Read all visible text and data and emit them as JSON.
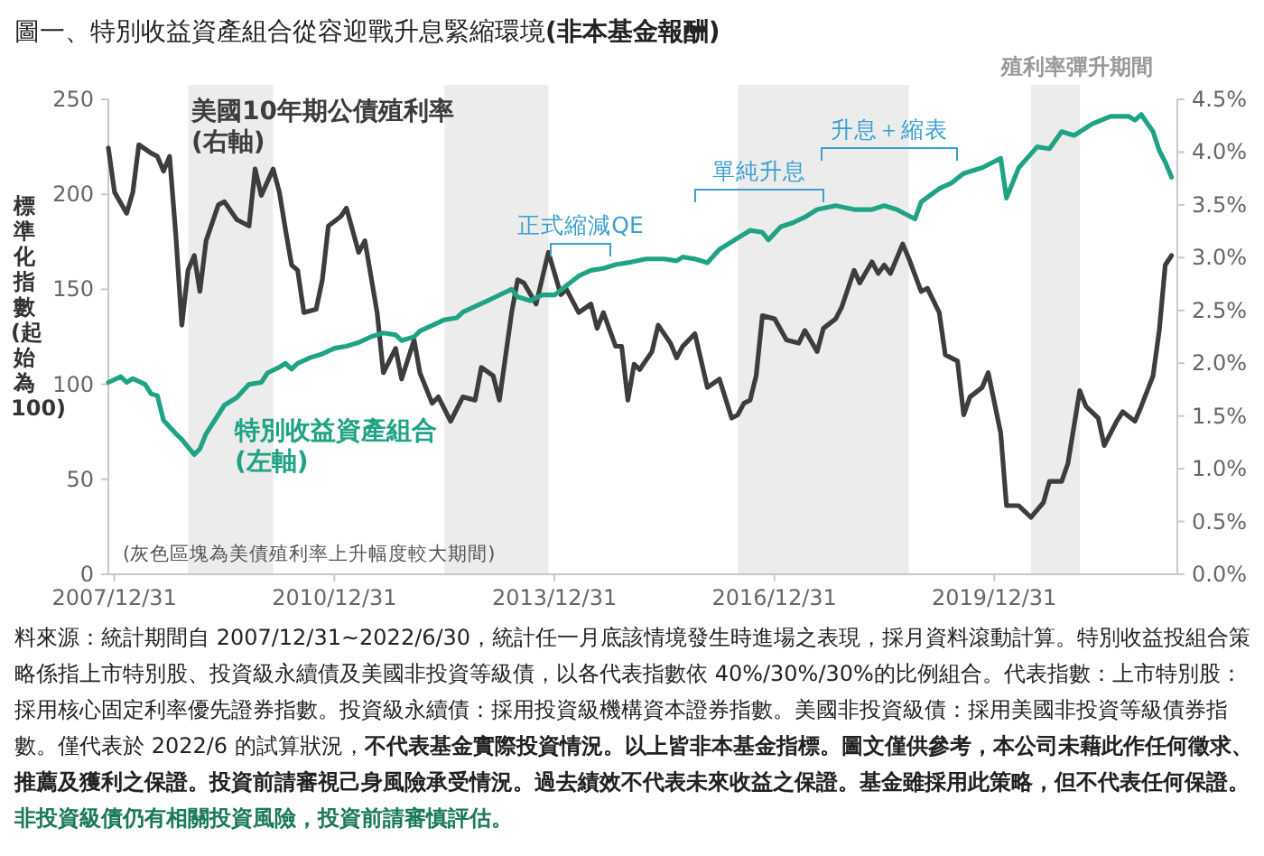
{
  "chart_data": {
    "type": "line",
    "title": "圖一、特別收益資產組合從容迎戰升息緊縮環境**(非本基金報酬)**",
    "ylabel": "標準化指數(起始為100)",
    "xlim": [
      "2007-12-01",
      "2022-06-30"
    ],
    "xticks": [
      {
        "value": "2007-12-31",
        "label": "2007/12/31"
      },
      {
        "value": "2010-12-31",
        "label": "2010/12/31"
      },
      {
        "value": "2013-12-31",
        "label": "2013/12/31"
      },
      {
        "value": "2016-12-31",
        "label": "2016/12/31"
      },
      {
        "value": "2019-12-31",
        "label": "2019/12/31"
      }
    ],
    "ylim": [
      0,
      250
    ],
    "yticks": [
      0,
      50,
      100,
      150,
      200,
      250
    ],
    "y2lim": [
      0,
      4.5
    ],
    "y2ticks": [
      {
        "value": 0,
        "label": "0.0%"
      },
      {
        "value": 0.5,
        "label": "0.5%"
      },
      {
        "value": 1,
        "label": "1.0%"
      },
      {
        "value": 1.5,
        "label": "1.5%"
      },
      {
        "value": 2,
        "label": "2.0%"
      },
      {
        "value": 2.5,
        "label": "2.5%"
      },
      {
        "value": 3,
        "label": "3.0%"
      },
      {
        "value": 3.5,
        "label": "3.5%"
      },
      {
        "value": 4,
        "label": "4.0%"
      },
      {
        "value": 4.5,
        "label": "4.5%"
      }
    ],
    "grid": false,
    "legend": false,
    "marker": "none",
    "line_style": "solid",
    "series": [
      {
        "name": "美國10年期公債殖利率(右軸)",
        "color": "#3d3d3d",
        "axis": "y2",
        "x": [
          "2007-12",
          "2008-01",
          "2008-03",
          "2008-04",
          "2008-05",
          "2008-07",
          "2008-08",
          "2008-09",
          "2008-10",
          "2008-11",
          "2008-12",
          "2009-01",
          "2009-02",
          "2009-03",
          "2009-04",
          "2009-06",
          "2009-07",
          "2009-09",
          "2009-11",
          "2009-12",
          "2010-01",
          "2010-03",
          "2010-04",
          "2010-05",
          "2010-06",
          "2010-07",
          "2010-08",
          "2010-10",
          "2010-11",
          "2010-12",
          "2011-02",
          "2011-03",
          "2011-05",
          "2011-06",
          "2011-08",
          "2011-09",
          "2011-11",
          "2011-12",
          "2012-02",
          "2012-03",
          "2012-05",
          "2012-06",
          "2012-08",
          "2012-10",
          "2012-12",
          "2013-01",
          "2013-03",
          "2013-04",
          "2013-06",
          "2013-07",
          "2013-08",
          "2013-10",
          "2013-12",
          "2014-02",
          "2014-03",
          "2014-05",
          "2014-07",
          "2014-08",
          "2014-09",
          "2014-11",
          "2014-12",
          "2015-01",
          "2015-02",
          "2015-03",
          "2015-05",
          "2015-06",
          "2015-08",
          "2015-09",
          "2015-10",
          "2015-12",
          "2016-02",
          "2016-04",
          "2016-06",
          "2016-07",
          "2016-08",
          "2016-09",
          "2016-10",
          "2016-11",
          "2017-01",
          "2017-03",
          "2017-05",
          "2017-06",
          "2017-08",
          "2017-09",
          "2017-11",
          "2017-12",
          "2018-02",
          "2018-03",
          "2018-05",
          "2018-06",
          "2018-07",
          "2018-08",
          "2018-10",
          "2018-11",
          "2019-01",
          "2019-02",
          "2019-04",
          "2019-05",
          "2019-07",
          "2019-08",
          "2019-09",
          "2019-11",
          "2019-12",
          "2020-02",
          "2020-03",
          "2020-05",
          "2020-07",
          "2020-09",
          "2020-10",
          "2020-12",
          "2021-01",
          "2021-03",
          "2021-04",
          "2021-06",
          "2021-07",
          "2021-09",
          "2021-10",
          "2021-12",
          "2022-01",
          "2022-03",
          "2022-04",
          "2022-05",
          "2022-06"
        ],
        "values": [
          4.04,
          3.62,
          3.42,
          3.62,
          4.07,
          3.99,
          3.96,
          3.82,
          3.96,
          3.22,
          2.36,
          2.88,
          3.02,
          2.68,
          3.16,
          3.5,
          3.53,
          3.36,
          3.3,
          3.84,
          3.59,
          3.84,
          3.62,
          3.27,
          2.93,
          2.88,
          2.48,
          2.51,
          2.79,
          3.3,
          3.39,
          3.47,
          3.05,
          3.16,
          2.48,
          1.91,
          2.14,
          1.85,
          2.22,
          1.91,
          1.62,
          1.68,
          1.45,
          1.68,
          1.65,
          1.96,
          1.88,
          1.65,
          2.48,
          2.79,
          2.76,
          2.56,
          3.05,
          2.65,
          2.7,
          2.48,
          2.56,
          2.33,
          2.48,
          2.16,
          2.16,
          1.65,
          1.99,
          1.94,
          2.11,
          2.36,
          2.19,
          2.05,
          2.16,
          2.28,
          1.77,
          1.85,
          1.48,
          1.51,
          1.62,
          1.65,
          1.88,
          2.45,
          2.42,
          2.22,
          2.19,
          2.31,
          2.11,
          2.33,
          2.42,
          2.53,
          2.88,
          2.76,
          2.96,
          2.85,
          2.93,
          2.85,
          3.13,
          2.99,
          2.68,
          2.71,
          2.48,
          2.08,
          2.02,
          1.51,
          1.68,
          1.77,
          1.91,
          1.34,
          0.65,
          0.65,
          0.54,
          0.68,
          0.88,
          0.88,
          1.05,
          1.74,
          1.59,
          1.48,
          1.22,
          1.45,
          1.54,
          1.45,
          1.59,
          1.88,
          2.31,
          2.93,
          3.02
        ]
      },
      {
        "name": "特別收益資產組合(左軸)",
        "color": "#1fa386",
        "x": [
          "2007-12",
          "2008-02",
          "2008-03",
          "2008-04",
          "2008-06",
          "2008-07",
          "2008-08",
          "2008-09",
          "2008-11",
          "2008-12",
          "2009-01",
          "2009-02",
          "2009-03",
          "2009-04",
          "2009-06",
          "2009-07",
          "2009-09",
          "2009-11",
          "2010-01",
          "2010-02",
          "2010-04",
          "2010-05",
          "2010-06",
          "2010-07",
          "2010-09",
          "2010-11",
          "2011-01",
          "2011-03",
          "2011-05",
          "2011-07",
          "2011-09",
          "2011-11",
          "2011-12",
          "2012-02",
          "2012-03",
          "2012-05",
          "2012-07",
          "2012-09",
          "2012-10",
          "2012-12",
          "2013-02",
          "2013-04",
          "2013-06",
          "2013-07",
          "2013-09",
          "2013-11",
          "2014-01",
          "2014-03",
          "2014-05",
          "2014-07",
          "2014-09",
          "2014-11",
          "2015-01",
          "2015-04",
          "2015-07",
          "2015-09",
          "2015-10",
          "2015-12",
          "2016-02",
          "2016-04",
          "2016-07",
          "2016-09",
          "2016-11",
          "2016-12",
          "2017-02",
          "2017-04",
          "2017-06",
          "2017-08",
          "2017-11",
          "2018-02",
          "2018-05",
          "2018-07",
          "2018-09",
          "2018-12",
          "2019-01",
          "2019-04",
          "2019-06",
          "2019-08",
          "2019-11",
          "2020-02",
          "2020-03",
          "2020-05",
          "2020-08",
          "2020-10",
          "2020-12",
          "2021-02",
          "2021-05",
          "2021-08",
          "2021-11",
          "2021-12",
          "2022-01",
          "2022-03",
          "2022-04",
          "2022-05",
          "2022-06"
        ],
        "values": [
          101,
          104,
          101,
          103,
          100,
          95,
          94,
          81,
          74,
          71,
          67,
          63,
          66,
          74,
          84,
          89,
          93,
          100,
          101,
          106,
          109,
          111,
          108,
          111,
          114,
          116,
          119,
          120,
          122,
          125,
          127,
          126,
          123,
          125,
          128,
          131,
          134,
          135,
          138,
          141,
          144,
          147,
          150,
          146,
          144,
          147,
          147,
          152,
          157,
          160,
          161,
          163,
          164,
          166,
          166,
          165,
          167,
          166,
          164,
          171,
          177,
          181,
          180,
          176,
          183,
          185,
          188,
          192,
          194,
          192,
          192,
          194,
          192,
          187,
          196,
          203,
          206,
          211,
          214,
          219,
          198,
          214,
          225,
          224,
          233,
          231,
          237,
          241,
          241,
          239,
          242,
          233,
          223,
          217,
          209
        ]
      }
    ],
    "bands": [
      {
        "axis": "x",
        "from": "2009-01",
        "to": "2010-03",
        "color": "#ececec"
      },
      {
        "axis": "x",
        "from": "2012-07",
        "to": "2013-12",
        "color": "#ececec"
      },
      {
        "axis": "x",
        "from": "2016-07",
        "to": "2018-11",
        "color": "#ececec"
      },
      {
        "axis": "x",
        "from": "2020-07",
        "to": "2021-03",
        "color": "#ececec",
        "label": "殖利率彈升期間"
      }
    ],
    "annotations": [
      "正式縮減QE",
      "單純升息",
      "升息＋縮表",
      "(灰色區塊為美債殖利率上升幅度較大期間)",
      "料來源：統計期間自 2007/12/31~2022/6/30，統計任一月底該情境發生時進場之表現，採月資料滾動計算。特別收益投組合策略係指上市特別股、投資級永續債及美國非投資等級債，以各代表指數依 40%/30%/30%的比例組合。代表指數：上市特別股：採用核心固定利率優先證券指數。投資級永續債：採用投資級機構資本證券指數。美國非投資級債：採用美國非投資等級債券指數。僅代表於 2022/6 的試算狀況，**不代表基金實際投資情況。以上皆非本基金指標。圖文僅供參考，本公司未藉此作任何徵求、推薦及獲利之保證。投資前請審視己身風險承受情況。過去績效不代表未來收益之保證。基金雖採用此策略，但不代表任何保證。**",
      "非投資級債仍有相關投資風險，投資前請審慎評估。"
    ]
  }
}
